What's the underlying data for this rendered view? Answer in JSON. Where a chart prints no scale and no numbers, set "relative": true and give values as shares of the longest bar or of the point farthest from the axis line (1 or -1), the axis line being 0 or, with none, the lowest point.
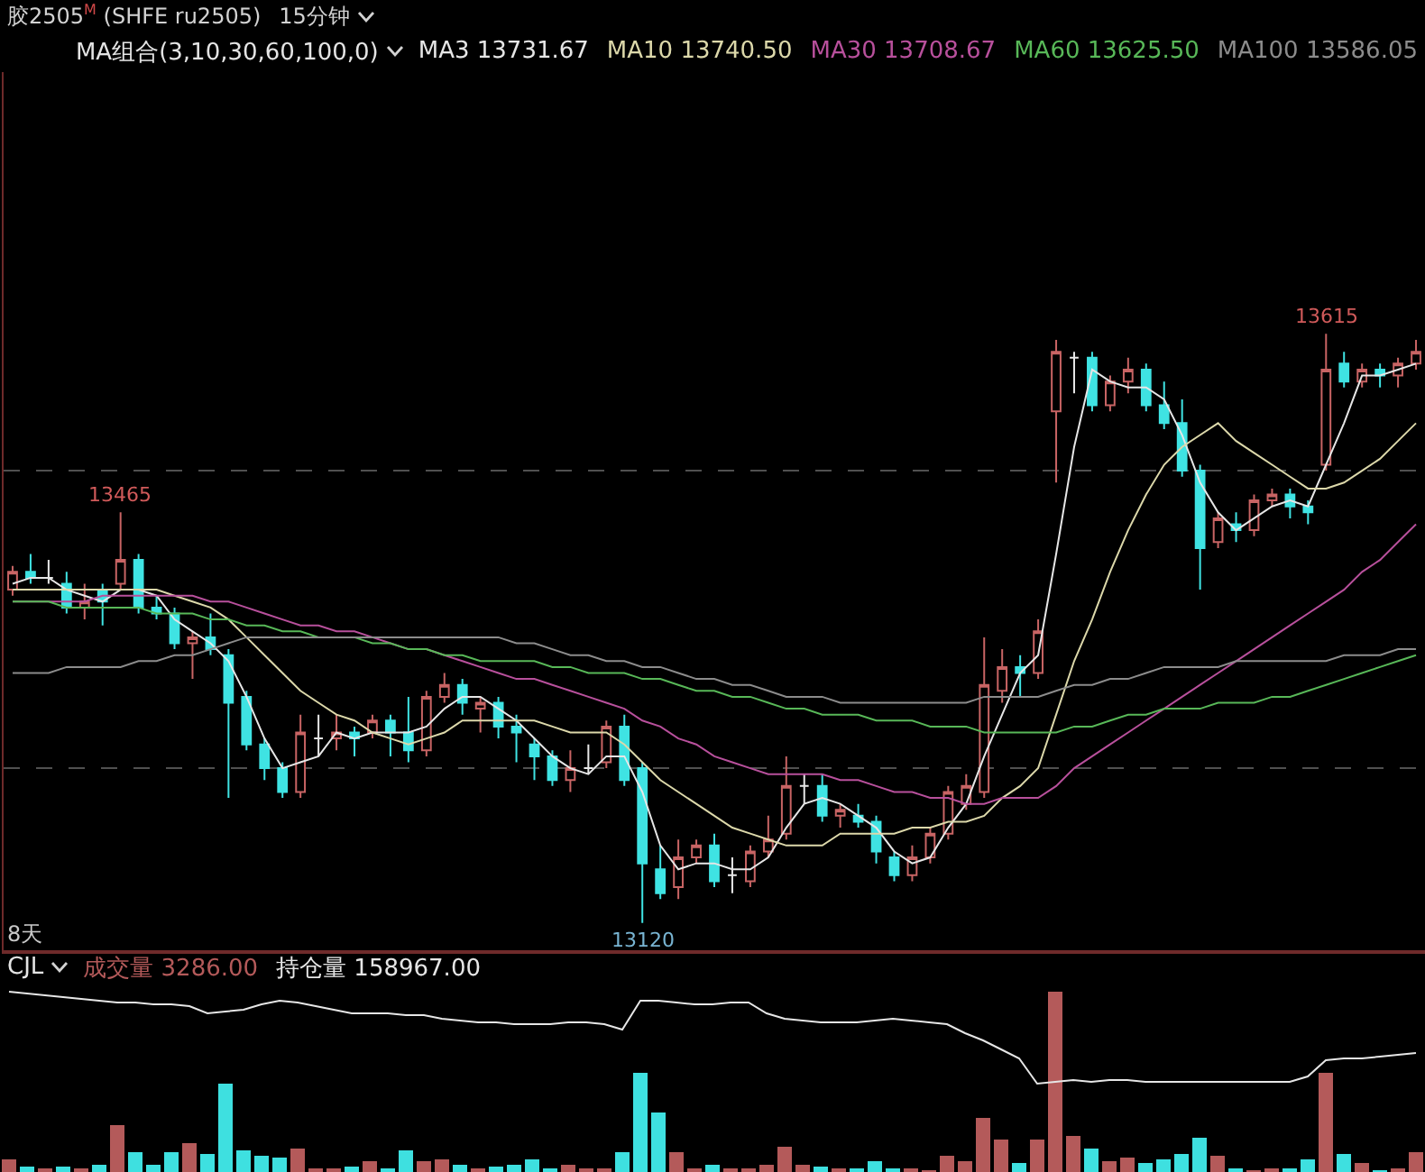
{
  "chart_data": [
    {
      "type": "candlestick",
      "title": "胶2505$^{M}$ (SHFE ru2505)",
      "subtitle": "15分钟",
      "legend_title": "MA组合(3,10,30,60,100,0)",
      "legend": "top right",
      "categories": [
        null,
        null,
        null,
        null,
        null,
        null,
        null,
        null,
        null,
        null,
        null,
        null,
        null,
        null,
        null,
        null,
        null,
        null,
        null,
        null,
        null,
        null,
        null,
        null,
        null,
        null,
        null,
        null,
        null,
        null,
        null,
        null,
        null,
        null,
        null,
        null,
        null,
        null,
        null,
        null,
        null,
        null,
        null,
        null,
        null,
        null,
        null,
        null,
        null,
        null,
        null,
        null,
        null,
        null,
        null,
        null,
        null,
        null,
        null,
        null,
        null,
        null,
        null,
        null,
        null,
        null,
        null,
        null,
        null,
        null,
        null,
        null,
        null,
        null,
        null,
        null,
        null,
        null,
        null
      ],
      "ohlc": [
        [
          13400,
          13420,
          13395,
          13415
        ],
        [
          13415,
          13430,
          13405,
          13410
        ],
        [
          13410,
          13425,
          13405,
          13410
        ],
        [
          13405,
          13415,
          13380,
          13385
        ],
        [
          13385,
          13405,
          13375,
          13390
        ],
        [
          13400,
          13405,
          13370,
          13390
        ],
        [
          13405,
          13465,
          13400,
          13425
        ],
        [
          13425,
          13430,
          13380,
          13385
        ],
        [
          13385,
          13395,
          13375,
          13380
        ],
        [
          13380,
          13385,
          13350,
          13355
        ],
        [
          13355,
          13365,
          13325,
          13360
        ],
        [
          13360,
          13380,
          13345,
          13350
        ],
        [
          13345,
          13350,
          13225,
          13305
        ],
        [
          13310,
          13315,
          13265,
          13270
        ],
        [
          13270,
          13275,
          13240,
          13250
        ],
        [
          13250,
          13255,
          13225,
          13230
        ],
        [
          13230,
          13295,
          13225,
          13280
        ],
        [
          13275,
          13295,
          13260,
          13275
        ],
        [
          13275,
          13295,
          13265,
          13280
        ],
        [
          13280,
          13285,
          13260,
          13275
        ],
        [
          13280,
          13295,
          13275,
          13290
        ],
        [
          13290,
          13295,
          13260,
          13280
        ],
        [
          13280,
          13310,
          13255,
          13265
        ],
        [
          13265,
          13315,
          13260,
          13310
        ],
        [
          13310,
          13330,
          13305,
          13320
        ],
        [
          13320,
          13325,
          13295,
          13305
        ],
        [
          13300,
          13310,
          13280,
          13305
        ],
        [
          13305,
          13310,
          13275,
          13285
        ],
        [
          13285,
          13295,
          13255,
          13280
        ],
        [
          13270,
          13275,
          13240,
          13260
        ],
        [
          13260,
          13265,
          13235,
          13240
        ],
        [
          13240,
          13265,
          13230,
          13250
        ],
        [
          13250,
          13270,
          13245,
          13250
        ],
        [
          13255,
          13290,
          13250,
          13285
        ],
        [
          13285,
          13295,
          13235,
          13240
        ],
        [
          13250,
          13255,
          13120,
          13170
        ],
        [
          13165,
          13185,
          13140,
          13145
        ],
        [
          13150,
          13190,
          13140,
          13175
        ],
        [
          13175,
          13190,
          13170,
          13185
        ],
        [
          13185,
          13195,
          13150,
          13155
        ],
        [
          13160,
          13175,
          13145,
          13160
        ],
        [
          13155,
          13185,
          13150,
          13180
        ],
        [
          13180,
          13210,
          13175,
          13190
        ],
        [
          13195,
          13260,
          13190,
          13235
        ],
        [
          13235,
          13245,
          13220,
          13235
        ],
        [
          13235,
          13245,
          13205,
          13210
        ],
        [
          13210,
          13220,
          13200,
          13215
        ],
        [
          13210,
          13220,
          13200,
          13205
        ],
        [
          13205,
          13210,
          13170,
          13180
        ],
        [
          13175,
          13180,
          13155,
          13160
        ],
        [
          13160,
          13185,
          13155,
          13175
        ],
        [
          13175,
          13200,
          13170,
          13195
        ],
        [
          13195,
          13235,
          13190,
          13230
        ],
        [
          13220,
          13245,
          13215,
          13235
        ],
        [
          13230,
          13360,
          13225,
          13320
        ],
        [
          13315,
          13350,
          13305,
          13335
        ],
        [
          13335,
          13345,
          13310,
          13330
        ],
        [
          13330,
          13375,
          13325,
          13365
        ],
        [
          13550,
          13610,
          13490,
          13600
        ],
        [
          13595,
          13600,
          13565,
          13595
        ],
        [
          13595,
          13600,
          13550,
          13555
        ],
        [
          13555,
          13580,
          13550,
          13575
        ],
        [
          13575,
          13595,
          13565,
          13585
        ],
        [
          13585,
          13590,
          13550,
          13555
        ],
        [
          13555,
          13575,
          13535,
          13540
        ],
        [
          13540,
          13560,
          13495,
          13500
        ],
        [
          13500,
          13505,
          13400,
          13435
        ],
        [
          13440,
          13465,
          13435,
          13460
        ],
        [
          13455,
          13465,
          13440,
          13450
        ],
        [
          13450,
          13480,
          13445,
          13475
        ],
        [
          13475,
          13485,
          13470,
          13480
        ],
        [
          13480,
          13485,
          13460,
          13470
        ],
        [
          13470,
          13475,
          13455,
          13465
        ],
        [
          13505,
          13615,
          13500,
          13585
        ],
        [
          13590,
          13600,
          13570,
          13575
        ],
        [
          13575,
          13590,
          13570,
          13585
        ],
        [
          13585,
          13590,
          13570,
          13580
        ],
        [
          13580,
          13595,
          13570,
          13590
        ],
        [
          13590,
          13610,
          13585,
          13600
        ]
      ],
      "series": [
        {
          "name": "MA3 13731.67",
          "type": "line",
          "color": "#e6e6e6",
          "values": [
            13405,
            13410,
            13410,
            13400,
            13395,
            13390,
            13400,
            13400,
            13395,
            13375,
            13365,
            13355,
            13340,
            13310,
            13275,
            13250,
            13255,
            13260,
            13280,
            13275,
            13280,
            13280,
            13280,
            13285,
            13300,
            13310,
            13310,
            13300,
            13290,
            13275,
            13260,
            13250,
            13245,
            13260,
            13260,
            13230,
            13185,
            13165,
            13170,
            13170,
            13165,
            13165,
            13175,
            13200,
            13220,
            13225,
            13220,
            13210,
            13200,
            13180,
            13170,
            13175,
            13200,
            13220,
            13260,
            13295,
            13330,
            13345,
            13430,
            13520,
            13585,
            13575,
            13570,
            13570,
            13560,
            13530,
            13490,
            13465,
            13450,
            13460,
            13470,
            13475,
            13470,
            13505,
            13540,
            13580,
            13580,
            13585,
            13590
          ]
        },
        {
          "name": "MA10 13740.50",
          "type": "line",
          "color": "#dcd8aa",
          "values": [
            13400,
            13400,
            13400,
            13400,
            13400,
            13400,
            13400,
            13400,
            13400,
            13395,
            13390,
            13385,
            13375,
            13360,
            13345,
            13330,
            13315,
            13305,
            13295,
            13290,
            13280,
            13275,
            13270,
            13275,
            13280,
            13290,
            13290,
            13290,
            13290,
            13290,
            13285,
            13280,
            13280,
            13280,
            13270,
            13255,
            13240,
            13230,
            13220,
            13210,
            13200,
            13195,
            13190,
            13185,
            13185,
            13185,
            13195,
            13195,
            13195,
            13195,
            13200,
            13200,
            13205,
            13205,
            13210,
            13225,
            13235,
            13250,
            13295,
            13340,
            13375,
            13415,
            13450,
            13480,
            13505,
            13520,
            13530,
            13540,
            13525,
            13515,
            13505,
            13495,
            13485,
            13485,
            13490,
            13500,
            13510,
            13525,
            13540
          ]
        },
        {
          "name": "MA30 13708.67",
          "type": "line",
          "color": "#b8509c",
          "values": [
            13390,
            13390,
            13390,
            13390,
            13390,
            13395,
            13395,
            13395,
            13395,
            13395,
            13395,
            13390,
            13390,
            13385,
            13380,
            13375,
            13370,
            13370,
            13365,
            13365,
            13360,
            13355,
            13350,
            13350,
            13345,
            13340,
            13335,
            13330,
            13325,
            13325,
            13320,
            13315,
            13310,
            13305,
            13300,
            13290,
            13285,
            13275,
            13270,
            13260,
            13255,
            13250,
            13245,
            13245,
            13245,
            13245,
            13240,
            13240,
            13235,
            13230,
            13230,
            13225,
            13225,
            13220,
            13220,
            13225,
            13225,
            13225,
            13235,
            13250,
            13260,
            13270,
            13280,
            13290,
            13300,
            13310,
            13320,
            13330,
            13340,
            13350,
            13360,
            13370,
            13380,
            13390,
            13400,
            13415,
            13425,
            13440,
            13455
          ]
        },
        {
          "name": "MA60 13625.50",
          "type": "line",
          "color": "#58b858",
          "values": [
            13390,
            13390,
            13390,
            13385,
            13385,
            13385,
            13385,
            13385,
            13380,
            13380,
            13380,
            13375,
            13375,
            13370,
            13370,
            13365,
            13365,
            13360,
            13360,
            13360,
            13355,
            13355,
            13350,
            13350,
            13345,
            13345,
            13340,
            13340,
            13340,
            13340,
            13335,
            13335,
            13330,
            13330,
            13330,
            13325,
            13325,
            13320,
            13315,
            13315,
            13310,
            13310,
            13305,
            13300,
            13300,
            13295,
            13295,
            13295,
            13290,
            13290,
            13290,
            13285,
            13285,
            13285,
            13280,
            13280,
            13280,
            13280,
            13280,
            13285,
            13285,
            13290,
            13295,
            13295,
            13300,
            13300,
            13300,
            13305,
            13305,
            13305,
            13310,
            13310,
            13315,
            13320,
            13325,
            13330,
            13335,
            13340,
            13345
          ]
        },
        {
          "name": "MA100 13586.05",
          "type": "line",
          "color": "#8c8c8c",
          "values": [
            13330,
            13330,
            13330,
            13335,
            13335,
            13335,
            13335,
            13340,
            13340,
            13345,
            13345,
            13350,
            13355,
            13360,
            13360,
            13360,
            13360,
            13360,
            13360,
            13360,
            13360,
            13360,
            13360,
            13360,
            13360,
            13360,
            13360,
            13360,
            13355,
            13355,
            13350,
            13345,
            13345,
            13340,
            13340,
            13335,
            13335,
            13330,
            13325,
            13325,
            13320,
            13320,
            13315,
            13310,
            13310,
            13310,
            13305,
            13305,
            13305,
            13305,
            13305,
            13305,
            13305,
            13305,
            13310,
            13310,
            13310,
            13310,
            13315,
            13320,
            13320,
            13325,
            13325,
            13330,
            13335,
            13335,
            13335,
            13335,
            13340,
            13340,
            13340,
            13340,
            13340,
            13340,
            13345,
            13345,
            13345,
            13350,
            13350
          ]
        }
      ],
      "ylim": [
        13097,
        13835
      ],
      "yticks": [
        {
          "value": 13500,
          "label": null
        },
        {
          "value": 13250,
          "label": null
        }
      ],
      "grid": "y",
      "annotations": [
        "8天",
        {
          "text": "13465",
          "y": 13465
        },
        {
          "text": "13615",
          "y": 13615
        },
        {
          "text": "13120",
          "y": 13120
        }
      ]
    },
    {
      "type": "bar",
      "legend_title": "CJL",
      "legend": "top left",
      "relative": true,
      "categories": [
        null,
        null,
        null,
        null,
        null,
        null,
        null,
        null,
        null,
        null,
        null,
        null,
        null,
        null,
        null,
        null,
        null,
        null,
        null,
        null,
        null,
        null,
        null,
        null,
        null,
        null,
        null,
        null,
        null,
        null,
        null,
        null,
        null,
        null,
        null,
        null,
        null,
        null,
        null,
        null,
        null,
        null,
        null,
        null,
        null,
        null,
        null,
        null,
        null,
        null,
        null,
        null,
        null,
        null,
        null,
        null,
        null,
        null,
        null,
        null,
        null,
        null,
        null,
        null,
        null,
        null,
        null,
        null,
        null,
        null,
        null,
        null,
        null,
        null,
        null,
        null,
        null,
        null,
        null
      ],
      "series": [
        {
          "name": "成交量 3286.00",
          "colors": [
            "#b45a5a",
            "#3ee0e0",
            "#b45a5a",
            "#3ee0e0",
            "#b45a5a",
            "#3ee0e0",
            "#b45a5a",
            "#3ee0e0",
            "#3ee0e0",
            "#3ee0e0",
            "#b45a5a",
            "#3ee0e0",
            "#3ee0e0",
            "#3ee0e0",
            "#3ee0e0",
            "#3ee0e0",
            "#b45a5a",
            "#b45a5a",
            "#b45a5a",
            "#3ee0e0",
            "#b45a5a",
            "#3ee0e0",
            "#3ee0e0",
            "#b45a5a",
            "#b45a5a",
            "#3ee0e0",
            "#b45a5a",
            "#3ee0e0",
            "#3ee0e0",
            "#3ee0e0",
            "#3ee0e0",
            "#b45a5a",
            "#b45a5a",
            "#b45a5a",
            "#3ee0e0",
            "#3ee0e0",
            "#3ee0e0",
            "#b45a5a",
            "#b45a5a",
            "#3ee0e0",
            "#b45a5a",
            "#b45a5a",
            "#b45a5a",
            "#b45a5a",
            "#b45a5a",
            "#3ee0e0",
            "#b45a5a",
            "#3ee0e0",
            "#3ee0e0",
            "#3ee0e0",
            "#b45a5a",
            "#b45a5a",
            "#b45a5a",
            "#b45a5a",
            "#b45a5a",
            "#b45a5a",
            "#3ee0e0",
            "#b45a5a",
            "#b45a5a",
            "#b45a5a",
            "#3ee0e0",
            "#b45a5a",
            "#b45a5a",
            "#3ee0e0",
            "#3ee0e0",
            "#3ee0e0",
            "#3ee0e0",
            "#b45a5a",
            "#3ee0e0",
            "#b45a5a",
            "#b45a5a",
            "#3ee0e0",
            "#3ee0e0",
            "#b45a5a",
            "#3ee0e0",
            "#b45a5a",
            "#3ee0e0",
            "#b45a5a",
            "#b45a5a"
          ],
          "values": [
            0.07,
            0.03,
            0.02,
            0.03,
            0.02,
            0.04,
            0.26,
            0.11,
            0.04,
            0.11,
            0.16,
            0.1,
            0.49,
            0.12,
            0.09,
            0.08,
            0.13,
            0.02,
            0.02,
            0.03,
            0.06,
            0.02,
            0.12,
            0.06,
            0.07,
            0.04,
            0.02,
            0.03,
            0.04,
            0.07,
            0.02,
            0.04,
            0.02,
            0.02,
            0.11,
            0.55,
            0.33,
            0.11,
            0.02,
            0.04,
            0.02,
            0.02,
            0.04,
            0.14,
            0.04,
            0.03,
            0.02,
            0.02,
            0.06,
            0.02,
            0.02,
            0.01,
            0.09,
            0.06,
            0.3,
            0.18,
            0.05,
            0.18,
            1,
            0.2,
            0.13,
            0.06,
            0.08,
            0.05,
            0.07,
            0.1,
            0.19,
            0.09,
            0.02,
            0.01,
            0.02,
            0.02,
            0.07,
            0.55,
            0.1,
            0.05,
            0.01,
            0.02,
            0.11
          ]
        },
        {
          "name": "持仓量 158967.00",
          "type": "line",
          "color": "#e6e6e6",
          "values": [
            1,
            0.99,
            0.98,
            0.97,
            0.96,
            0.95,
            0.94,
            0.94,
            0.93,
            0.93,
            0.92,
            0.88,
            0.89,
            0.9,
            0.93,
            0.95,
            0.94,
            0.92,
            0.9,
            0.88,
            0.88,
            0.88,
            0.87,
            0.87,
            0.85,
            0.84,
            0.83,
            0.83,
            0.82,
            0.82,
            0.82,
            0.83,
            0.83,
            0.82,
            0.79,
            0.95,
            0.95,
            0.94,
            0.93,
            0.93,
            0.94,
            0.94,
            0.88,
            0.85,
            0.84,
            0.83,
            0.83,
            0.83,
            0.84,
            0.85,
            0.84,
            0.83,
            0.82,
            0.77,
            0.73,
            0.68,
            0.63,
            0.49,
            0.5,
            0.51,
            0.5,
            0.51,
            0.51,
            0.5,
            0.5,
            0.5,
            0.5,
            0.5,
            0.5,
            0.5,
            0.5,
            0.5,
            0.53,
            0.62,
            0.63,
            0.63,
            0.64,
            0.65,
            0.66
          ]
        }
      ]
    }
  ]
}
